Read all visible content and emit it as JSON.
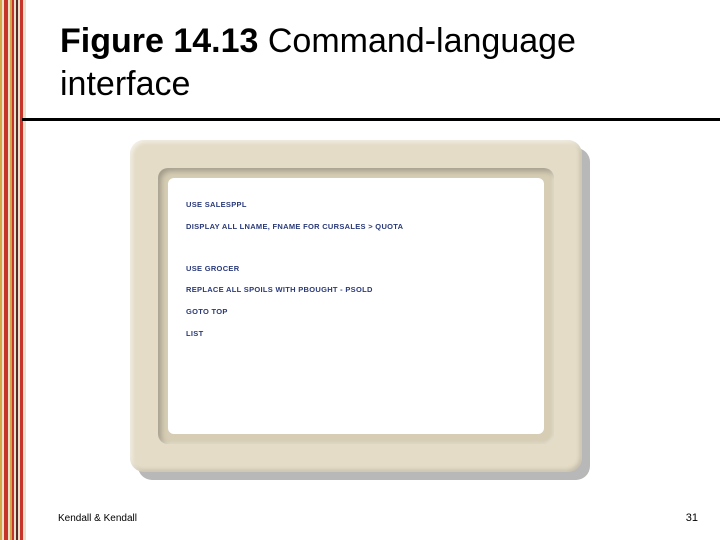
{
  "left_stripe": {
    "segments": [
      {
        "color": "#d4a848",
        "width": 2
      },
      {
        "color": "#e8e2cc",
        "width": 2
      },
      {
        "color": "#c6342a",
        "width": 4
      },
      {
        "color": "#e8e2cc",
        "width": 2
      },
      {
        "color": "#d4a848",
        "width": 2
      },
      {
        "color": "#c6342a",
        "width": 2
      },
      {
        "color": "#e8e2cc",
        "width": 2
      },
      {
        "color": "#5a2a24",
        "width": 2
      },
      {
        "color": "#e8e2cc",
        "width": 2
      },
      {
        "color": "#c6342a",
        "width": 3
      },
      {
        "color": "#e8e2cc",
        "width": 3
      }
    ]
  },
  "title": {
    "bold_part": "Figure 14.13 ",
    "rest_part": "Command-language interface",
    "font_size": 34,
    "bold_weight": 700,
    "regular_weight": 400,
    "color": "#000000"
  },
  "rule": {
    "color": "#000000",
    "height": 3
  },
  "monitor": {
    "bezel_color": "#e4dcc6",
    "inner_color": "#d6cdb4",
    "screen_color": "#ffffff",
    "shadow_color": "#b8b8b8",
    "text_color": "#2a3a7a",
    "cmd_font_size": 7.5,
    "commands_block1": [
      "USE SALESPPL",
      "DISPLAY ALL LNAME, FNAME FOR CURSALES > QUOTA"
    ],
    "commands_block2": [
      "USE GROCER",
      "REPLACE ALL SPOILS WITH PBOUGHT - PSOLD",
      "GOTO TOP",
      "LIST"
    ]
  },
  "footer": {
    "author": "Kendall & Kendall",
    "page": "31",
    "font_size": 10,
    "color": "#000000"
  }
}
